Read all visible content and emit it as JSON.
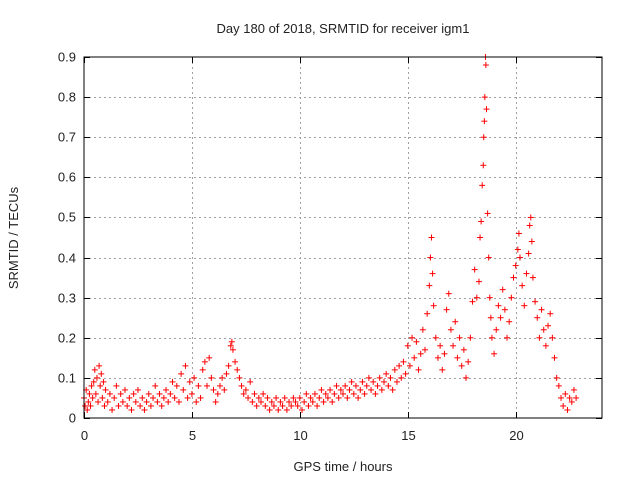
{
  "chart_data": {
    "type": "scatter",
    "title": "Day 180 of 2018, SRMTID for receiver igm1",
    "xlabel": "GPS time / hours",
    "ylabel": "SRMTID / TECUs",
    "xlim": [
      0,
      24
    ],
    "ylim": [
      0,
      0.9
    ],
    "xticks": [
      0,
      5,
      10,
      15,
      20
    ],
    "xtick_labels": [
      "0",
      "5",
      "10",
      "15",
      "20"
    ],
    "yticks": [
      0,
      0.1,
      0.2,
      0.3,
      0.4,
      0.5,
      0.6,
      0.7,
      0.8,
      0.9
    ],
    "ytick_labels": [
      "0",
      "0.1",
      "0.2",
      "0.3",
      "0.4",
      "0.5",
      "0.6",
      "0.7",
      "0.8",
      "0.9"
    ],
    "grid": true,
    "marker": "+",
    "marker_color": "#ff0000",
    "series": [
      {
        "name": "SRMTID",
        "points": [
          [
            0.0,
            0.05
          ],
          [
            0.05,
            0.03
          ],
          [
            0.1,
            0.07
          ],
          [
            0.15,
            0.02
          ],
          [
            0.2,
            0.04
          ],
          [
            0.25,
            0.06
          ],
          [
            0.3,
            0.03
          ],
          [
            0.35,
            0.08
          ],
          [
            0.4,
            0.05
          ],
          [
            0.45,
            0.09
          ],
          [
            0.5,
            0.12
          ],
          [
            0.55,
            0.06
          ],
          [
            0.6,
            0.1
          ],
          [
            0.65,
            0.04
          ],
          [
            0.7,
            0.13
          ],
          [
            0.75,
            0.08
          ],
          [
            0.8,
            0.11
          ],
          [
            0.85,
            0.05
          ],
          [
            0.9,
            0.09
          ],
          [
            0.95,
            0.03
          ],
          [
            1.0,
            0.07
          ],
          [
            1.1,
            0.04
          ],
          [
            1.2,
            0.06
          ],
          [
            1.3,
            0.02
          ],
          [
            1.4,
            0.05
          ],
          [
            1.5,
            0.08
          ],
          [
            1.6,
            0.03
          ],
          [
            1.7,
            0.06
          ],
          [
            1.8,
            0.04
          ],
          [
            1.9,
            0.07
          ],
          [
            2.0,
            0.03
          ],
          [
            2.1,
            0.05
          ],
          [
            2.2,
            0.02
          ],
          [
            2.3,
            0.06
          ],
          [
            2.4,
            0.04
          ],
          [
            2.5,
            0.07
          ],
          [
            2.6,
            0.03
          ],
          [
            2.7,
            0.05
          ],
          [
            2.8,
            0.02
          ],
          [
            2.9,
            0.04
          ],
          [
            3.0,
            0.06
          ],
          [
            3.1,
            0.03
          ],
          [
            3.2,
            0.05
          ],
          [
            3.3,
            0.08
          ],
          [
            3.4,
            0.04
          ],
          [
            3.5,
            0.06
          ],
          [
            3.6,
            0.03
          ],
          [
            3.7,
            0.05
          ],
          [
            3.8,
            0.07
          ],
          [
            3.9,
            0.04
          ],
          [
            4.0,
            0.06
          ],
          [
            4.1,
            0.09
          ],
          [
            4.2,
            0.05
          ],
          [
            4.3,
            0.08
          ],
          [
            4.4,
            0.04
          ],
          [
            4.5,
            0.11
          ],
          [
            4.6,
            0.07
          ],
          [
            4.7,
            0.13
          ],
          [
            4.8,
            0.05
          ],
          [
            4.9,
            0.09
          ],
          [
            5.0,
            0.06
          ],
          [
            5.1,
            0.1
          ],
          [
            5.2,
            0.04
          ],
          [
            5.3,
            0.08
          ],
          [
            5.4,
            0.05
          ],
          [
            5.5,
            0.12
          ],
          [
            5.6,
            0.14
          ],
          [
            5.7,
            0.08
          ],
          [
            5.8,
            0.15
          ],
          [
            5.9,
            0.1
          ],
          [
            6.0,
            0.07
          ],
          [
            6.1,
            0.04
          ],
          [
            6.2,
            0.06
          ],
          [
            6.3,
            0.08
          ],
          [
            6.4,
            0.1
          ],
          [
            6.5,
            0.07
          ],
          [
            6.6,
            0.11
          ],
          [
            6.7,
            0.13
          ],
          [
            6.8,
            0.18
          ],
          [
            6.85,
            0.19
          ],
          [
            6.9,
            0.17
          ],
          [
            7.0,
            0.14
          ],
          [
            7.1,
            0.12
          ],
          [
            7.2,
            0.1
          ],
          [
            7.3,
            0.08
          ],
          [
            7.4,
            0.06
          ],
          [
            7.5,
            0.07
          ],
          [
            7.6,
            0.05
          ],
          [
            7.7,
            0.09
          ],
          [
            7.8,
            0.04
          ],
          [
            7.9,
            0.06
          ],
          [
            8.0,
            0.03
          ],
          [
            8.1,
            0.05
          ],
          [
            8.2,
            0.04
          ],
          [
            8.3,
            0.06
          ],
          [
            8.4,
            0.03
          ],
          [
            8.5,
            0.05
          ],
          [
            8.6,
            0.02
          ],
          [
            8.7,
            0.04
          ],
          [
            8.8,
            0.03
          ],
          [
            8.9,
            0.05
          ],
          [
            9.0,
            0.02
          ],
          [
            9.1,
            0.04
          ],
          [
            9.2,
            0.03
          ],
          [
            9.3,
            0.05
          ],
          [
            9.4,
            0.02
          ],
          [
            9.5,
            0.04
          ],
          [
            9.6,
            0.03
          ],
          [
            9.7,
            0.05
          ],
          [
            9.8,
            0.04
          ],
          [
            9.9,
            0.03
          ],
          [
            10.0,
            0.05
          ],
          [
            10.1,
            0.02
          ],
          [
            10.2,
            0.04
          ],
          [
            10.3,
            0.06
          ],
          [
            10.4,
            0.03
          ],
          [
            10.5,
            0.05
          ],
          [
            10.6,
            0.04
          ],
          [
            10.7,
            0.06
          ],
          [
            10.8,
            0.03
          ],
          [
            10.9,
            0.05
          ],
          [
            11.0,
            0.07
          ],
          [
            11.1,
            0.04
          ],
          [
            11.2,
            0.06
          ],
          [
            11.3,
            0.05
          ],
          [
            11.4,
            0.07
          ],
          [
            11.5,
            0.04
          ],
          [
            11.6,
            0.06
          ],
          [
            11.7,
            0.08
          ],
          [
            11.8,
            0.05
          ],
          [
            11.9,
            0.07
          ],
          [
            12.0,
            0.06
          ],
          [
            12.1,
            0.08
          ],
          [
            12.2,
            0.05
          ],
          [
            12.3,
            0.07
          ],
          [
            12.4,
            0.09
          ],
          [
            12.5,
            0.06
          ],
          [
            12.6,
            0.08
          ],
          [
            12.7,
            0.05
          ],
          [
            12.8,
            0.07
          ],
          [
            12.9,
            0.09
          ],
          [
            13.0,
            0.06
          ],
          [
            13.1,
            0.08
          ],
          [
            13.2,
            0.1
          ],
          [
            13.3,
            0.07
          ],
          [
            13.4,
            0.09
          ],
          [
            13.5,
            0.06
          ],
          [
            13.6,
            0.08
          ],
          [
            13.7,
            0.1
          ],
          [
            13.8,
            0.07
          ],
          [
            13.9,
            0.09
          ],
          [
            14.0,
            0.11
          ],
          [
            14.1,
            0.08
          ],
          [
            14.2,
            0.1
          ],
          [
            14.3,
            0.07
          ],
          [
            14.4,
            0.12
          ],
          [
            14.5,
            0.09
          ],
          [
            14.6,
            0.13
          ],
          [
            14.7,
            0.1
          ],
          [
            14.8,
            0.14
          ],
          [
            14.9,
            0.11
          ],
          [
            15.0,
            0.18
          ],
          [
            15.1,
            0.13
          ],
          [
            15.2,
            0.2
          ],
          [
            15.3,
            0.15
          ],
          [
            15.4,
            0.19
          ],
          [
            15.5,
            0.12
          ],
          [
            15.6,
            0.16
          ],
          [
            15.7,
            0.22
          ],
          [
            15.8,
            0.17
          ],
          [
            15.9,
            0.26
          ],
          [
            16.0,
            0.33
          ],
          [
            16.05,
            0.4
          ],
          [
            16.1,
            0.45
          ],
          [
            16.15,
            0.36
          ],
          [
            16.2,
            0.28
          ],
          [
            16.3,
            0.2
          ],
          [
            16.4,
            0.15
          ],
          [
            16.5,
            0.18
          ],
          [
            16.6,
            0.12
          ],
          [
            16.7,
            0.16
          ],
          [
            16.8,
            0.27
          ],
          [
            16.9,
            0.31
          ],
          [
            17.0,
            0.22
          ],
          [
            17.1,
            0.18
          ],
          [
            17.2,
            0.24
          ],
          [
            17.3,
            0.15
          ],
          [
            17.4,
            0.2
          ],
          [
            17.5,
            0.13
          ],
          [
            17.6,
            0.17
          ],
          [
            17.7,
            0.1
          ],
          [
            17.8,
            0.14
          ],
          [
            17.9,
            0.2
          ],
          [
            18.0,
            0.29
          ],
          [
            18.1,
            0.37
          ],
          [
            18.2,
            0.3
          ],
          [
            18.3,
            0.34
          ],
          [
            18.35,
            0.45
          ],
          [
            18.4,
            0.49
          ],
          [
            18.45,
            0.58
          ],
          [
            18.5,
            0.63
          ],
          [
            18.52,
            0.7
          ],
          [
            18.55,
            0.74
          ],
          [
            18.57,
            0.8
          ],
          [
            18.6,
            0.9
          ],
          [
            18.62,
            0.88
          ],
          [
            18.65,
            0.77
          ],
          [
            18.7,
            0.51
          ],
          [
            18.75,
            0.4
          ],
          [
            18.8,
            0.3
          ],
          [
            18.85,
            0.25
          ],
          [
            18.9,
            0.2
          ],
          [
            19.0,
            0.16
          ],
          [
            19.1,
            0.22
          ],
          [
            19.2,
            0.28
          ],
          [
            19.3,
            0.25
          ],
          [
            19.4,
            0.32
          ],
          [
            19.5,
            0.27
          ],
          [
            19.6,
            0.2
          ],
          [
            19.7,
            0.24
          ],
          [
            19.8,
            0.3
          ],
          [
            19.9,
            0.35
          ],
          [
            20.0,
            0.38
          ],
          [
            20.1,
            0.42
          ],
          [
            20.15,
            0.46
          ],
          [
            20.2,
            0.4
          ],
          [
            20.3,
            0.33
          ],
          [
            20.4,
            0.28
          ],
          [
            20.5,
            0.36
          ],
          [
            20.6,
            0.41
          ],
          [
            20.65,
            0.48
          ],
          [
            20.7,
            0.5
          ],
          [
            20.75,
            0.44
          ],
          [
            20.8,
            0.35
          ],
          [
            20.9,
            0.29
          ],
          [
            21.0,
            0.25
          ],
          [
            21.1,
            0.2
          ],
          [
            21.2,
            0.27
          ],
          [
            21.3,
            0.22
          ],
          [
            21.4,
            0.18
          ],
          [
            21.5,
            0.23
          ],
          [
            21.6,
            0.26
          ],
          [
            21.7,
            0.2
          ],
          [
            21.8,
            0.15
          ],
          [
            21.9,
            0.1
          ],
          [
            22.0,
            0.08
          ],
          [
            22.1,
            0.05
          ],
          [
            22.2,
            0.03
          ],
          [
            22.3,
            0.06
          ],
          [
            22.4,
            0.02
          ],
          [
            22.5,
            0.05
          ],
          [
            22.6,
            0.04
          ],
          [
            22.7,
            0.07
          ],
          [
            22.8,
            0.05
          ]
        ]
      }
    ]
  }
}
